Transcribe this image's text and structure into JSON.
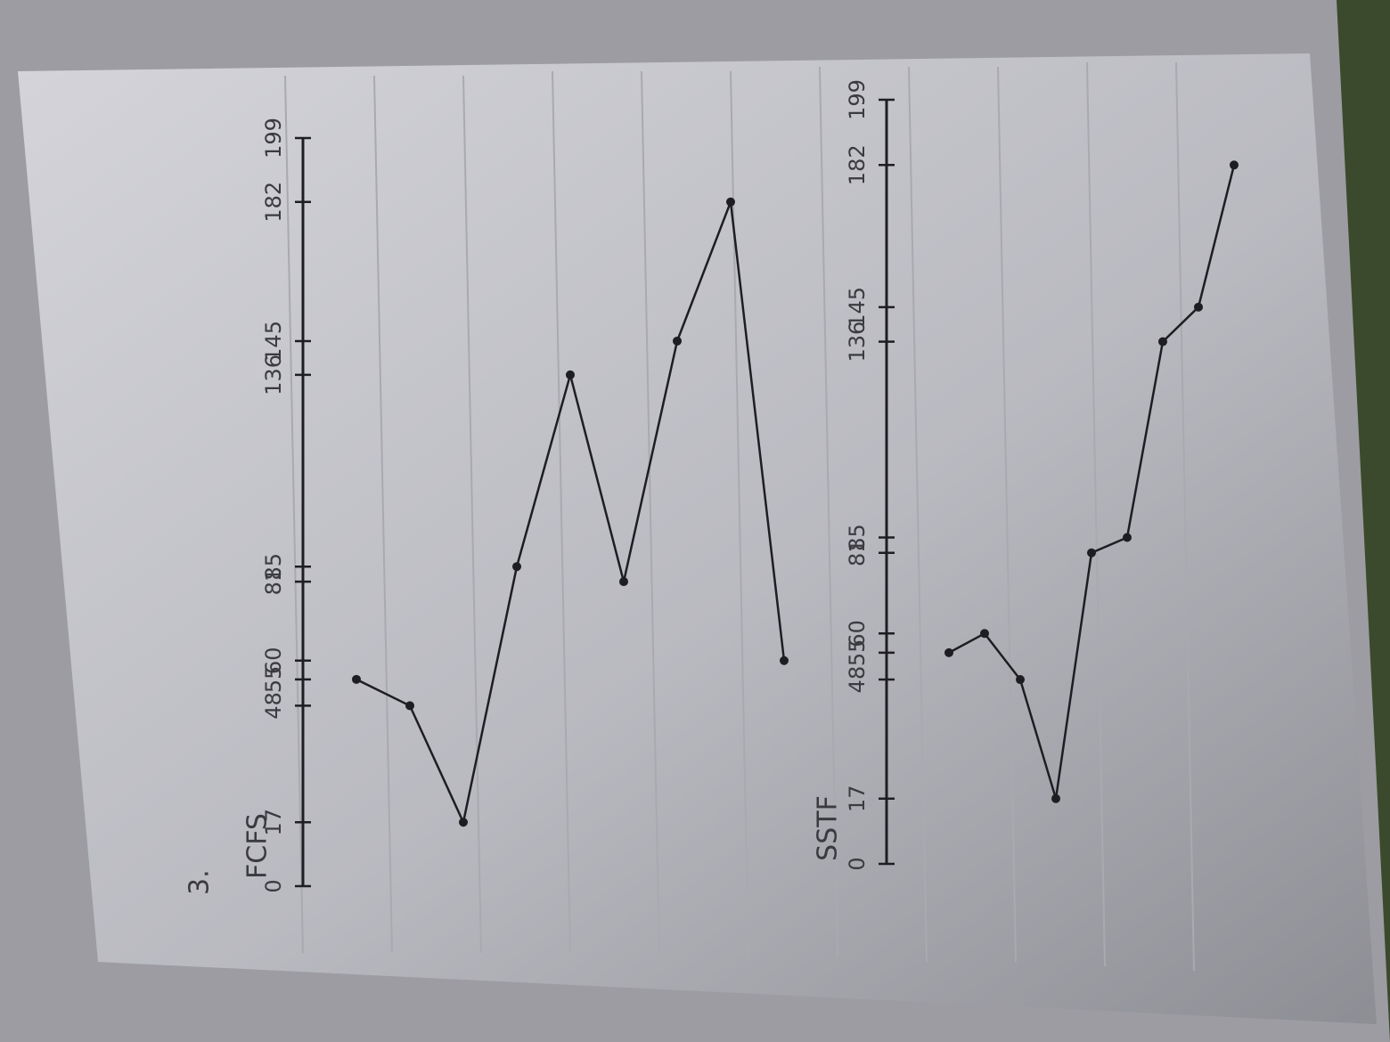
{
  "question_number": "3.",
  "chart_data": [
    {
      "type": "line",
      "title": "FCFS",
      "color": "#1e1e22",
      "values": [
        55,
        48,
        17,
        85,
        136,
        81,
        145,
        182,
        60
      ],
      "ylim": [
        0,
        199
      ],
      "yticks": [
        0,
        17,
        48,
        55,
        60,
        81,
        85,
        136,
        145,
        182,
        199
      ]
    },
    {
      "type": "line",
      "title": "SSTF",
      "color": "#1e1e22",
      "values": [
        55,
        60,
        48,
        17,
        81,
        85,
        136,
        145,
        182
      ],
      "ylim": [
        0,
        199
      ],
      "yticks": [
        0,
        17,
        48,
        55,
        60,
        81,
        85,
        136,
        145,
        182,
        199
      ]
    }
  ]
}
